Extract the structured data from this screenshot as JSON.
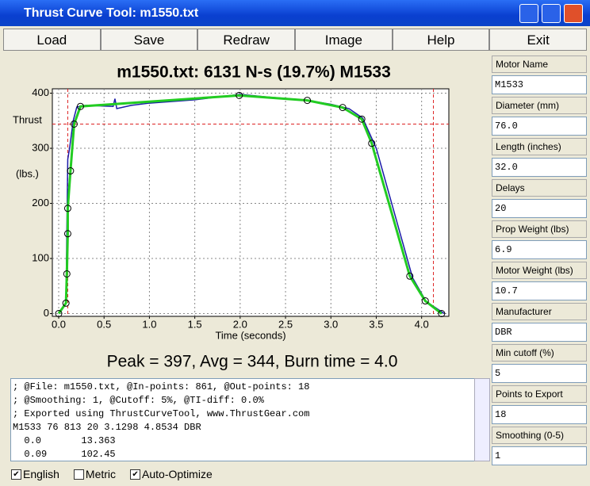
{
  "window": {
    "title": "Thrust Curve Tool: m1550.txt"
  },
  "menu": [
    "Load",
    "Save",
    "Redraw",
    "Image",
    "Help",
    "Exit"
  ],
  "chart_data": {
    "type": "line",
    "title": "m1550.txt:  6131 N-s (19.7%) M1533",
    "y_label": "Thrust",
    "y_unit": "(lbs.)",
    "x_label": "Time (seconds)",
    "xlim": [
      -0.07,
      4.3
    ],
    "ylim": [
      -5,
      408
    ],
    "xticks": [
      {
        "value": 0,
        "label": "0.0"
      },
      {
        "value": 0.5,
        "label": "0.5"
      },
      {
        "value": 1,
        "label": "1.0"
      },
      {
        "value": 1.5,
        "label": "1.5"
      },
      {
        "value": 2,
        "label": "2.0"
      },
      {
        "value": 2.5,
        "label": "2.5"
      },
      {
        "value": 3,
        "label": "3.0"
      },
      {
        "value": 3.5,
        "label": "3.5"
      },
      {
        "value": 4,
        "label": "4.0"
      }
    ],
    "yticks": [
      0,
      100,
      200,
      300,
      400
    ],
    "grid": true,
    "ref_lines": {
      "color": "#dd2222",
      "x": [
        0.1,
        4.13
      ],
      "y": [
        344
      ]
    },
    "series": [
      {
        "color": "#1a1aa8",
        "markers": false,
        "x": [
          0.08,
          0.1,
          0.12,
          0.16,
          0.2,
          0.3,
          0.6,
          0.62,
          0.64,
          0.8,
          1.0,
          1.5,
          2.0,
          2.3,
          2.7,
          3.0,
          3.2,
          3.35,
          3.5,
          3.9,
          4.05,
          4.25
        ],
        "values": [
          20,
          280,
          300,
          350,
          375,
          378,
          376,
          390,
          372,
          378,
          382,
          388,
          398,
          393,
          388,
          380,
          372,
          355,
          300,
          65,
          22,
          0
        ]
      },
      {
        "color": "#22cc22",
        "markers": true,
        "x": [
          0,
          0.08,
          0.09,
          0.1,
          0.1,
          0.13,
          0.17,
          0.24,
          1.99,
          2.74,
          3.13,
          3.34,
          3.45,
          3.87,
          4.04,
          4.22
        ],
        "values": [
          0,
          19,
          72,
          145,
          191,
          259,
          344,
          376,
          396,
          387,
          374,
          353,
          309,
          68,
          23,
          0
        ]
      }
    ],
    "summary": "Peak = 397, Avg = 344, Burn time = 4.0"
  },
  "export_lines": [
    "; @File: m1550.txt, @In-points: 861, @Out-points: 18",
    "; @Smoothing: 1, @Cutoff: 5%, @TI-diff: 0.0%",
    "; Exported using ThrustCurveTool, www.ThrustGear.com",
    "M1533 76 813 20 3.1298 4.8534 DBR",
    "  0.0       13.363",
    "  0.09      102.45"
  ],
  "fields": [
    {
      "label": "Motor Name",
      "value": "M1533"
    },
    {
      "label": "Diameter (mm)",
      "value": "76.0"
    },
    {
      "label": "Length (inches)",
      "value": "32.0"
    },
    {
      "label": "Delays",
      "value": "20"
    },
    {
      "label": "Prop Weight (lbs)",
      "value": "6.9"
    },
    {
      "label": "Motor Weight (lbs)",
      "value": "10.7"
    },
    {
      "label": "Manufacturer",
      "value": "DBR"
    },
    {
      "label": "Min cutoff (%)",
      "value": "5"
    },
    {
      "label": "Points to Export",
      "value": "18"
    },
    {
      "label": "Smoothing (0-5)",
      "value": "1"
    }
  ],
  "options": [
    {
      "label": "English",
      "checked": true
    },
    {
      "label": "Metric",
      "checked": false
    },
    {
      "label": "Auto-Optimize",
      "checked": true
    }
  ]
}
